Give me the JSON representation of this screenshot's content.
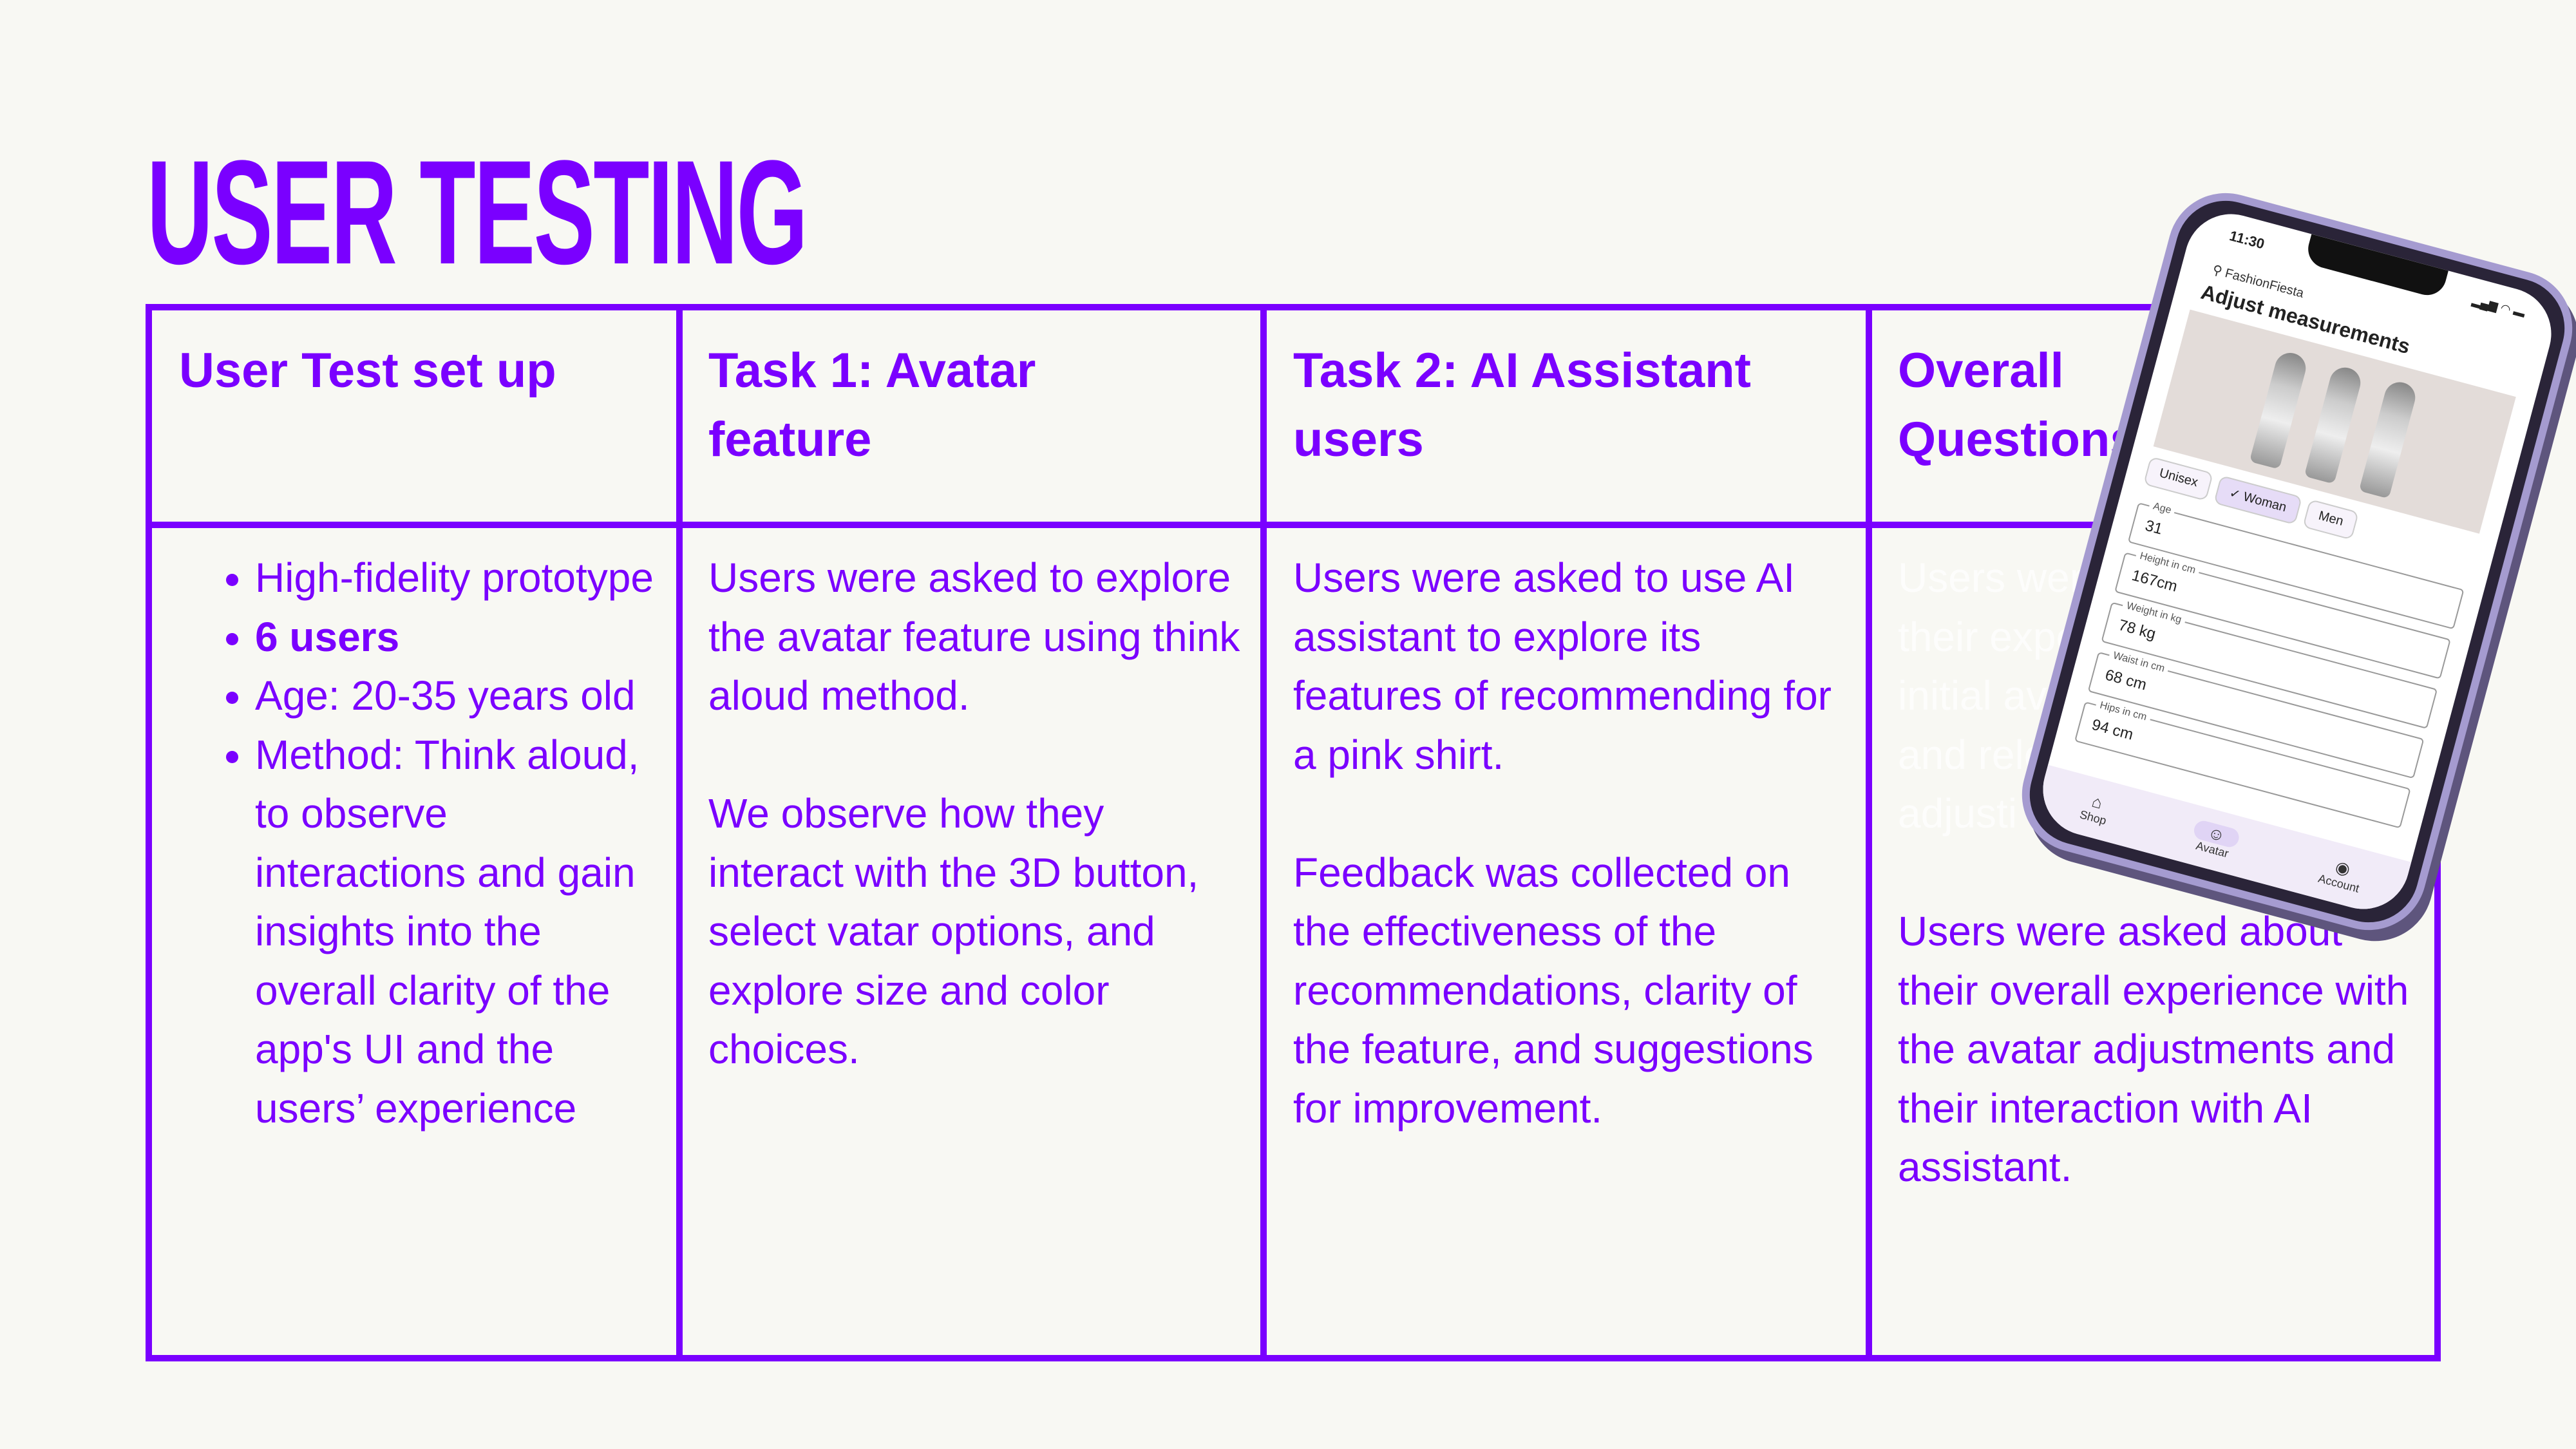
{
  "title": "USER TESTING",
  "accent_color": "#7a00ff",
  "columns": [
    {
      "header": "User Test set up",
      "bullets": [
        {
          "text": "High-fidelity prototype",
          "bold": false
        },
        {
          "text": "6 users",
          "bold": true
        },
        {
          "text": "Age: 20-35 years old",
          "bold": false
        },
        {
          "text": "Method: Think aloud, to observe interactions and gain insights into the overall clarity of the app's UI and the users’ experience",
          "bold": false
        }
      ]
    },
    {
      "header": "Task 1: Avatar feature",
      "paragraphs": [
        "Users were asked to explore the avatar feature using think aloud method.",
        "We observe how they interact with the 3D button, select vatar options, and explore size and color choices."
      ]
    },
    {
      "header": "Task 2: AI Assistant users",
      "paragraphs": [
        "Users were asked to use AI assistant to explore its features of recommending for a pink shirt.",
        "Feedback was collected on the effectiveness of the recommendations, clarity of the feature, and suggestions for improvement."
      ]
    },
    {
      "header": "Overall Questions:",
      "hidden_lines": [
        "Users were",
        "their expe",
        "initial ava",
        "and rele",
        "adjusti"
      ],
      "paragraphs": [
        "Users were asked about their overall experience with the avatar adjustments and their interaction with AI assistant."
      ]
    }
  ],
  "phone": {
    "time": "11:30",
    "brand": "FashionFiesta",
    "heading": "Adjust measurements",
    "chips": [
      {
        "label": "Unisex",
        "selected": false
      },
      {
        "label": "✓ Woman",
        "selected": true
      },
      {
        "label": "Men",
        "selected": false
      }
    ],
    "fields": [
      {
        "label": "Age",
        "value": "31"
      },
      {
        "label": "Height in cm",
        "value": "167cm"
      },
      {
        "label": "Weight in kg",
        "value": "78 kg"
      },
      {
        "label": "Waist in cm",
        "value": "68 cm"
      },
      {
        "label": "Hips in cm",
        "value": "94 cm"
      }
    ],
    "nav": [
      {
        "label": "Shop",
        "icon": "home-icon"
      },
      {
        "label": "Avatar",
        "icon": "person-icon"
      },
      {
        "label": "Account",
        "icon": "account-icon"
      }
    ]
  }
}
